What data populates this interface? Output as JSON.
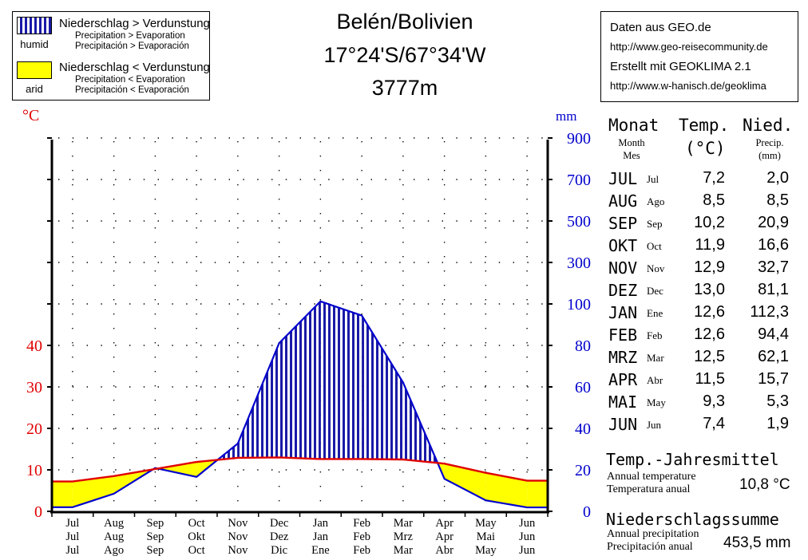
{
  "legend": {
    "humid_label": "humid",
    "humid_line1": "Niederschlag > Verdunstung",
    "humid_line2": "Precipitation  >  Evaporation",
    "humid_line3": "Precipitación  >  Evaporación",
    "arid_label": "arid",
    "arid_line1": "Niederschlag < Verdunstung",
    "arid_line2": "Precipitation  <  Evaporation",
    "arid_line3": "Precipitación  <  Evaporación"
  },
  "title": {
    "station": "Belén/Bolivien",
    "coordinates": "17°24'S/67°34'W",
    "elevation": "3777m"
  },
  "source": {
    "line1": "Daten aus GEO.de",
    "line2": "http://www.geo-reisecommunity.de",
    "line3": "Erstellt mit GEOKLIMA 2.1",
    "line4": "http://www.w-hanisch.de/geoklima"
  },
  "table": {
    "month_header": "Monat",
    "month_sub1": "Month",
    "month_sub2": "Mes",
    "temp_header": "Temp.",
    "temp_unit": "(°C)",
    "prec_header": "Nied.",
    "prec_sub1": "Precip.",
    "prec_sub2": "(mm)",
    "rows": [
      {
        "de": "JUL",
        "es": "Jul",
        "temp": "7,2",
        "prec": "2,0"
      },
      {
        "de": "AUG",
        "es": "Ago",
        "temp": "8,5",
        "prec": "8,5"
      },
      {
        "de": "SEP",
        "es": "Sep",
        "temp": "10,2",
        "prec": "20,9"
      },
      {
        "de": "OKT",
        "es": "Oct",
        "temp": "11,9",
        "prec": "16,6"
      },
      {
        "de": "NOV",
        "es": "Nov",
        "temp": "12,9",
        "prec": "32,7"
      },
      {
        "de": "DEZ",
        "es": "Dec",
        "temp": "13,0",
        "prec": "81,1"
      },
      {
        "de": "JAN",
        "es": "Ene",
        "temp": "12,6",
        "prec": "112,3"
      },
      {
        "de": "FEB",
        "es": "Feb",
        "temp": "12,6",
        "prec": "94,4"
      },
      {
        "de": "MRZ",
        "es": "Mar",
        "temp": "12,5",
        "prec": "62,1"
      },
      {
        "de": "APR",
        "es": "Abr",
        "temp": "11,5",
        "prec": "15,7"
      },
      {
        "de": "MAI",
        "es": "May",
        "temp": "9,3",
        "prec": "5,3"
      },
      {
        "de": "JUN",
        "es": "Jun",
        "temp": "7,4",
        "prec": "1,9"
      }
    ]
  },
  "annual": {
    "temp_header": "Temp.-Jahresmittel",
    "temp_sub1": "Annual temperature",
    "temp_sub2": "Temperatura  anual",
    "temp_value": "10,8 °C",
    "prec_header": "Niederschlagssumme",
    "prec_sub1": "Annual precipitation",
    "prec_sub2": "Precipitación  anual",
    "prec_value": "453,5 mm"
  },
  "colors": {
    "temperature": "#e00000",
    "precipitation": "#0000cc",
    "humid_fill": "#1a1aa8",
    "arid_fill": "#ffff00"
  },
  "chart_data": {
    "type": "line",
    "categories_en": [
      "Jul",
      "Aug",
      "Sep",
      "Oct",
      "Nov",
      "Dec",
      "Jan",
      "Feb",
      "Mar",
      "Apr",
      "May",
      "Jun"
    ],
    "categories_de": [
      "Jul",
      "Aug",
      "Sep",
      "Okt",
      "Nov",
      "Dez",
      "Jan",
      "Feb",
      "Mrz",
      "Apr",
      "Mai",
      "Jun"
    ],
    "categories_es": [
      "Jul",
      "Ago",
      "Sep",
      "Oct",
      "Nov",
      "Dic",
      "Ene",
      "Feb",
      "Mar",
      "Abr",
      "May",
      "Jun"
    ],
    "series": [
      {
        "name": "Temperature (°C)",
        "axis": "left",
        "values": [
          7.2,
          8.5,
          10.2,
          11.9,
          12.9,
          13.0,
          12.6,
          12.6,
          12.5,
          11.5,
          9.3,
          7.4
        ]
      },
      {
        "name": "Precipitation (mm)",
        "axis": "right",
        "values": [
          2.0,
          8.5,
          20.9,
          16.6,
          32.7,
          81.1,
          112.3,
          94.4,
          62.1,
          15.7,
          5.3,
          1.9
        ]
      }
    ],
    "left_axis": {
      "unit": "°C",
      "ticks": [
        0,
        10,
        20,
        30,
        40
      ],
      "labels": [
        "0",
        "10",
        "20",
        "30",
        "40"
      ]
    },
    "right_axis": {
      "unit": "mm",
      "ticks": [
        0,
        20,
        40,
        60,
        80,
        100,
        300,
        500,
        700,
        900
      ],
      "labels": [
        "0",
        "20",
        "40",
        "60",
        "80",
        "100",
        "300",
        "500",
        "700",
        "900"
      ],
      "note": "1 °C = 2 mm up to 100 mm; above 100 mm scale compressed (1 °C = 20 mm)"
    },
    "grid": true
  }
}
